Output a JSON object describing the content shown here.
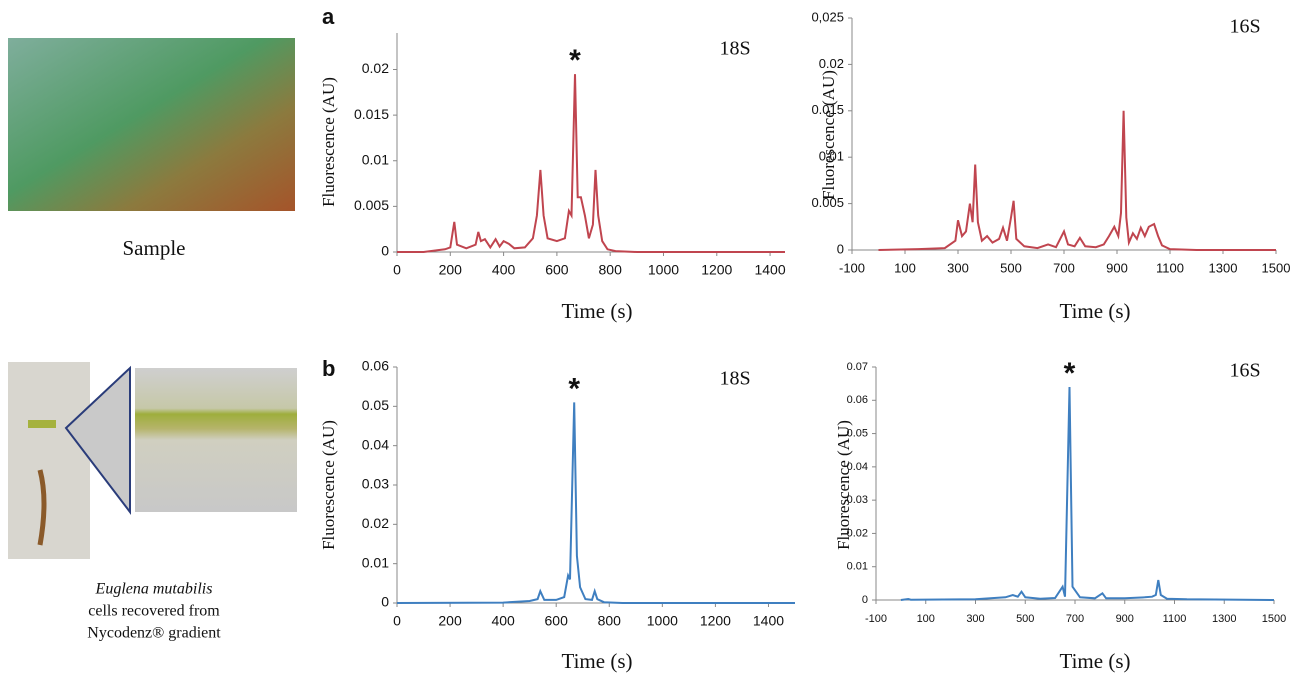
{
  "photo_captions": {
    "sample": "Sample",
    "species": "Euglena mutabilis",
    "line2": "cells recovered from",
    "line3": "Nycodenz® gradient"
  },
  "chart_data": [
    {
      "type": "line",
      "panel": "a",
      "title": "18S",
      "annotation": "*",
      "xlabel": "Time (s)",
      "ylabel": "Fluorescence (AU)",
      "xlim": [
        0,
        1456
      ],
      "ylim": [
        0,
        0.024
      ],
      "xticks": [
        0,
        200,
        400,
        600,
        800,
        1000,
        1200,
        1400
      ],
      "yticks": [
        0,
        0.005,
        0.01,
        0.015,
        0.02
      ],
      "series": [
        {
          "color": "#c0454f",
          "x": [
            0,
            100,
            180,
            200,
            215,
            225,
            260,
            295,
            305,
            315,
            330,
            350,
            370,
            385,
            400,
            420,
            440,
            480,
            510,
            525,
            538,
            550,
            565,
            600,
            630,
            645,
            655,
            668,
            678,
            690,
            705,
            720,
            735,
            745,
            755,
            770,
            790,
            820,
            900,
            1000,
            1200,
            1456
          ],
          "values": [
            0,
            0,
            0.0003,
            0.0005,
            0.0033,
            0.0008,
            0.0004,
            0.0008,
            0.0022,
            0.0012,
            0.0014,
            0.0005,
            0.0014,
            0.0006,
            0.0012,
            0.0009,
            0.0004,
            0.0005,
            0.0015,
            0.004,
            0.009,
            0.004,
            0.0015,
            0.0012,
            0.0015,
            0.0045,
            0.004,
            0.0195,
            0.006,
            0.006,
            0.004,
            0.0015,
            0.003,
            0.009,
            0.004,
            0.0012,
            0.0003,
            0.0001,
            0,
            0,
            0,
            0
          ]
        }
      ]
    },
    {
      "type": "line",
      "title": "16S",
      "xlabel": "Time (s)",
      "ylabel": "Fluorescence (AU)",
      "xlim": [
        -100,
        1500
      ],
      "ylim": [
        0,
        0.025
      ],
      "xticks": [
        -100,
        100,
        300,
        500,
        700,
        900,
        1100,
        1300,
        1500
      ],
      "yticks": [
        0,
        0.005,
        0.01,
        0.015,
        0.02,
        {
          "value": 0.025,
          "label": "0,025"
        }
      ],
      "series": [
        {
          "color": "#c0454f",
          "x": [
            0,
            150,
            250,
            290,
            300,
            315,
            330,
            345,
            355,
            365,
            375,
            390,
            410,
            430,
            455,
            470,
            485,
            500,
            510,
            520,
            550,
            600,
            640,
            670,
            700,
            715,
            740,
            760,
            780,
            820,
            850,
            870,
            890,
            905,
            915,
            925,
            935,
            945,
            960,
            975,
            990,
            1005,
            1020,
            1040,
            1055,
            1070,
            1100,
            1200,
            1500
          ],
          "values": [
            0,
            0.0001,
            0.0002,
            0.001,
            0.0032,
            0.0015,
            0.002,
            0.005,
            0.003,
            0.0092,
            0.003,
            0.001,
            0.0015,
            0.0008,
            0.0012,
            0.0024,
            0.001,
            0.0035,
            0.0053,
            0.0012,
            0.0004,
            0.0002,
            0.0006,
            0.0003,
            0.002,
            0.0006,
            0.0004,
            0.0013,
            0.0004,
            0.0003,
            0.0006,
            0.0015,
            0.0025,
            0.0015,
            0.004,
            0.015,
            0.0035,
            0.0008,
            0.0018,
            0.0012,
            0.0024,
            0.0015,
            0.0025,
            0.0028,
            0.0015,
            0.0005,
            0.0001,
            0,
            0
          ]
        }
      ]
    },
    {
      "type": "line",
      "panel": "b",
      "title": "18S",
      "annotation": "*",
      "xlabel": "Time (s)",
      "ylabel": "Fluorescence (AU)",
      "xlim": [
        0,
        1500
      ],
      "ylim": [
        0,
        0.06
      ],
      "xticks": [
        0,
        200,
        400,
        600,
        800,
        1000,
        1200,
        1400
      ],
      "yticks": [
        0,
        0.01,
        0.02,
        0.03,
        0.04,
        0.05,
        0.06
      ],
      "series": [
        {
          "color": "#3f7fc0",
          "x": [
            0,
            400,
            500,
            530,
            540,
            555,
            600,
            630,
            645,
            652,
            668,
            678,
            690,
            710,
            735,
            745,
            755,
            780,
            850,
            1500
          ],
          "values": [
            0,
            0.0001,
            0.0005,
            0.001,
            0.003,
            0.0008,
            0.0008,
            0.0015,
            0.007,
            0.006,
            0.051,
            0.012,
            0.004,
            0.001,
            0.0008,
            0.003,
            0.001,
            0.0002,
            0,
            0
          ]
        }
      ]
    },
    {
      "type": "line",
      "title": "16S",
      "annotation": "*",
      "xlabel": "Time (s)",
      "ylabel": "Fluorescence (AU)",
      "xlim": [
        -100,
        1500
      ],
      "ylim": [
        0,
        0.07
      ],
      "xticks": [
        -100,
        100,
        300,
        500,
        700,
        900,
        1100,
        1300,
        1500
      ],
      "yticks": [
        0,
        0.01,
        0.02,
        0.03,
        0.04,
        0.05,
        0.06,
        0.07
      ],
      "series": [
        {
          "color": "#3f7fc0",
          "x": [
            0,
            30,
            40,
            300,
            420,
            450,
            470,
            485,
            500,
            560,
            620,
            650,
            660,
            678,
            690,
            720,
            780,
            810,
            825,
            900,
            980,
            1010,
            1025,
            1035,
            1045,
            1070,
            1150,
            1500
          ],
          "values": [
            0,
            0.0003,
            0.0001,
            0.0002,
            0.0008,
            0.0015,
            0.001,
            0.0025,
            0.0008,
            0.0004,
            0.0006,
            0.004,
            0.001,
            0.064,
            0.004,
            0.0008,
            0.0005,
            0.002,
            0.0005,
            0.0005,
            0.0008,
            0.001,
            0.0015,
            0.006,
            0.0015,
            0.0004,
            0.0002,
            0
          ]
        }
      ]
    }
  ]
}
